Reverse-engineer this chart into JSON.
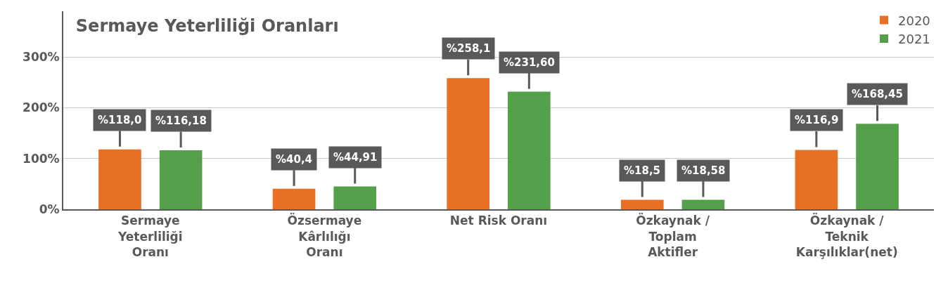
{
  "chart_data": {
    "type": "bar",
    "title": "Sermaye Yeterliliği Oranları",
    "categories": [
      "Sermaye Yeterliliği Oranı",
      "Özsermaye Kârlılığı Oranı",
      "Net Risk Oranı",
      "Özkaynak / Toplam Aktifler",
      "Özkaynak / Teknik Karşılıklar(net)"
    ],
    "series": [
      {
        "name": "2020",
        "color": "#e87025",
        "values": [
          118.0,
          40.4,
          258.1,
          18.5,
          116.9
        ],
        "value_labels": [
          "%118,0",
          "%40,4",
          "%258,1",
          "%18,5",
          "%116,9"
        ]
      },
      {
        "name": "2021",
        "color": "#54a04a",
        "values": [
          116.18,
          44.91,
          231.6,
          18.58,
          168.45
        ],
        "value_labels": [
          "%116,18",
          "%44,91",
          "%231,60",
          "%18,58",
          "%168,45"
        ]
      }
    ],
    "ylim": [
      0,
      390
    ],
    "yticks": [
      {
        "value": 0,
        "label": "0%"
      },
      {
        "value": 100,
        "label": "100%"
      },
      {
        "value": 200,
        "label": "200%"
      },
      {
        "value": 300,
        "label": "300%"
      }
    ],
    "grid": "y",
    "legend": "top right"
  }
}
